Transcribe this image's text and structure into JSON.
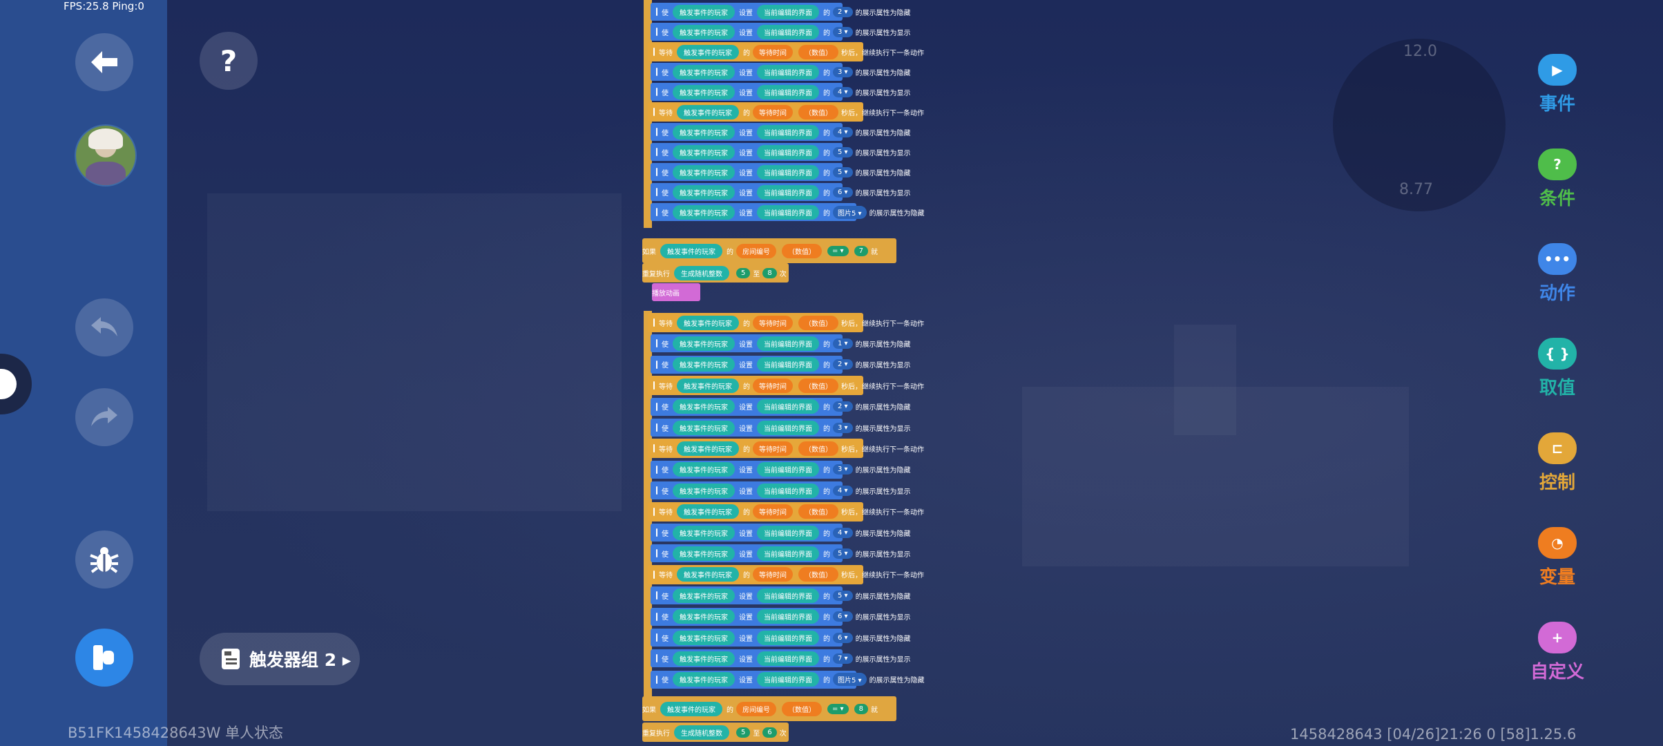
{
  "status": {
    "fps": "FPS:25.8  Ping:0"
  },
  "sidebar": {
    "back": "back-arrow-icon",
    "undo": "undo-icon",
    "redo": "redo-icon",
    "debug": "bug-icon",
    "run": "run-icon"
  },
  "help": {
    "label": "?"
  },
  "trigger_group": {
    "label": "触发器组 2 ▸"
  },
  "footer": {
    "left": "B51FK1458428643W 单人状态",
    "right": "1458428643    [04/26]21:26 0    [58]1.25.6"
  },
  "minimap": {
    "top": "12.0",
    "bottom": "8.77"
  },
  "categories": [
    {
      "label": "事件",
      "color": "#2f9be6",
      "glyph": "▶"
    },
    {
      "label": "条件",
      "color": "#4fbd4a",
      "glyph": "?"
    },
    {
      "label": "动作",
      "color": "#3f86e8",
      "glyph": "•••"
    },
    {
      "label": "取值",
      "color": "#22b3a8",
      "glyph": "{ }"
    },
    {
      "label": "控制",
      "color": "#e3a739",
      "glyph": "⊏"
    },
    {
      "label": "变量",
      "color": "#ef7d20",
      "glyph": "◔"
    },
    {
      "label": "自定义",
      "color": "#d26ad6",
      "glyph": "+"
    }
  ],
  "blocks": {
    "set_show": "使",
    "player": "触发事件的玩家",
    "set": "设置",
    "ui": "当前编辑的界面",
    "of": "的",
    "hide_suffix": "的展示属性为隐藏",
    "show_suffix": "的展示属性为显示",
    "wait": "等待",
    "wait_time": "等待时间",
    "number": "（数值）",
    "wait_suffix": "秒后，继续执行下一条动作",
    "if": "如果",
    "room": "房间编号",
    "then": "就",
    "eq": "= ▾",
    "repeat": "重复执行",
    "random": "生成随机整数",
    "to": "至",
    "times": "次",
    "play": "播放动画",
    "img5": "图片5 ▾"
  },
  "sequence_a": [
    {
      "kind": "set",
      "idx": "2 ▾",
      "mode": "hide"
    },
    {
      "kind": "set",
      "idx": "3 ▾",
      "mode": "show"
    },
    {
      "kind": "wait"
    },
    {
      "kind": "set",
      "idx": "3 ▾",
      "mode": "hide"
    },
    {
      "kind": "set",
      "idx": "4 ▾",
      "mode": "show"
    },
    {
      "kind": "wait"
    },
    {
      "kind": "set",
      "idx": "4 ▾",
      "mode": "hide"
    },
    {
      "kind": "set",
      "idx": "5 ▾",
      "mode": "show"
    },
    {
      "kind": "set",
      "idx": "5 ▾",
      "mode": "hide"
    },
    {
      "kind": "set",
      "idx": "6 ▾",
      "mode": "show"
    },
    {
      "kind": "img",
      "idx": "图片5 ▾",
      "mode": "hide"
    }
  ],
  "if_a": {
    "value": "7",
    "rand_from": "5",
    "rand_to": "8"
  },
  "sequence_b": [
    {
      "kind": "wait"
    },
    {
      "kind": "set",
      "idx": "1 ▾",
      "mode": "hide"
    },
    {
      "kind": "set",
      "idx": "2 ▾",
      "mode": "show"
    },
    {
      "kind": "wait"
    },
    {
      "kind": "set",
      "idx": "2 ▾",
      "mode": "hide"
    },
    {
      "kind": "set",
      "idx": "3 ▾",
      "mode": "show"
    },
    {
      "kind": "wait"
    },
    {
      "kind": "set",
      "idx": "3 ▾",
      "mode": "hide"
    },
    {
      "kind": "set",
      "idx": "4 ▾",
      "mode": "show"
    },
    {
      "kind": "wait"
    },
    {
      "kind": "set",
      "idx": "4 ▾",
      "mode": "hide"
    },
    {
      "kind": "set",
      "idx": "5 ▾",
      "mode": "show"
    },
    {
      "kind": "wait"
    },
    {
      "kind": "set",
      "idx": "5 ▾",
      "mode": "hide"
    },
    {
      "kind": "set",
      "idx": "6 ▾",
      "mode": "show"
    },
    {
      "kind": "set",
      "idx": "6 ▾",
      "mode": "hide"
    },
    {
      "kind": "set",
      "idx": "7 ▾",
      "mode": "show"
    },
    {
      "kind": "img",
      "idx": "图片5 ▾",
      "mode": "hide"
    }
  ],
  "if_b": {
    "value": "8",
    "rand_from": "5",
    "rand_to": "6"
  }
}
